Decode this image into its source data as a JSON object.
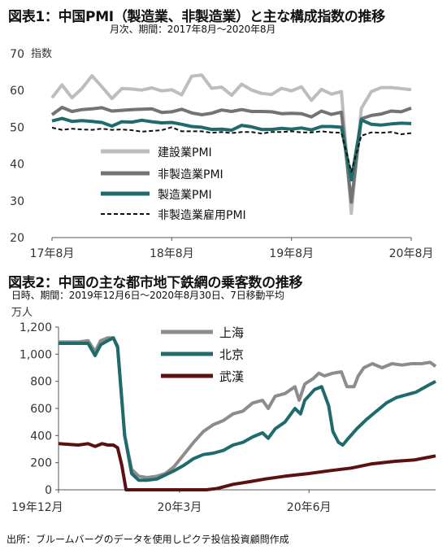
{
  "page": {
    "source": "出所：ブルームバーグのデータを使用しピクテ投信投資顧問作成"
  },
  "chart_data": [
    {
      "type": "line",
      "title": "図表1：中国PMI（製造業、非製造業）と主な構成指数の推移",
      "subtitle": "月次、期間：2017年8月～2020年8月",
      "ylabel": "指数",
      "ylim": [
        20,
        70
      ],
      "yticks": [
        20,
        30,
        40,
        50,
        60,
        70
      ],
      "xlabels": [
        "17年8月",
        "18年8月",
        "19年8月",
        "20年8月"
      ],
      "x": [
        "2017-08",
        "2017-09",
        "2017-10",
        "2017-11",
        "2017-12",
        "2018-01",
        "2018-02",
        "2018-03",
        "2018-04",
        "2018-05",
        "2018-06",
        "2018-07",
        "2018-08",
        "2018-09",
        "2018-10",
        "2018-11",
        "2018-12",
        "2019-01",
        "2019-02",
        "2019-03",
        "2019-04",
        "2019-05",
        "2019-06",
        "2019-07",
        "2019-08",
        "2019-09",
        "2019-10",
        "2019-11",
        "2019-12",
        "2020-01",
        "2020-02",
        "2020-03",
        "2020-04",
        "2020-05",
        "2020-06",
        "2020-07",
        "2020-08"
      ],
      "grid": false,
      "legend": "inside-bottom-left",
      "series": [
        {
          "name": "建設業PMI",
          "color": "#bdbdbd",
          "values": [
            58.0,
            61.5,
            58.0,
            60.5,
            64.0,
            61.0,
            57.8,
            60.5,
            60.4,
            60.1,
            60.7,
            59.9,
            60.2,
            58.8,
            63.9,
            64.2,
            60.6,
            60.9,
            58.7,
            61.7,
            60.1,
            59.2,
            58.9,
            60.6,
            59.9,
            61.0,
            57.3,
            60.3,
            59.0,
            59.7,
            26.6,
            55.1,
            59.7,
            60.8,
            60.8,
            60.5,
            60.2
          ]
        },
        {
          "name": "非製造業PMI",
          "color": "#737373",
          "values": [
            53.4,
            55.4,
            54.3,
            54.8,
            55.0,
            55.3,
            54.4,
            54.6,
            54.8,
            54.9,
            55.0,
            54.0,
            54.2,
            54.9,
            53.9,
            53.4,
            53.8,
            54.7,
            54.3,
            54.8,
            54.3,
            54.3,
            54.2,
            53.7,
            53.8,
            53.7,
            52.8,
            54.4,
            53.5,
            54.1,
            29.6,
            52.3,
            53.2,
            53.6,
            54.4,
            54.2,
            55.2
          ]
        },
        {
          "name": "製造業PMI",
          "color": "#1f6b6b",
          "values": [
            51.7,
            52.4,
            51.6,
            51.8,
            51.6,
            51.3,
            50.3,
            51.5,
            51.4,
            51.9,
            51.5,
            51.2,
            51.3,
            50.8,
            50.2,
            50.0,
            49.4,
            49.5,
            49.2,
            50.5,
            50.1,
            49.4,
            49.4,
            49.7,
            49.5,
            49.8,
            49.3,
            50.2,
            50.2,
            50.0,
            35.7,
            52.0,
            50.8,
            50.6,
            50.9,
            51.1,
            51.0
          ]
        },
        {
          "name": "非製造業雇用PMI",
          "color": "#111111",
          "dash": true,
          "values": [
            49.9,
            49.3,
            49.6,
            49.4,
            49.3,
            49.6,
            49.3,
            49.4,
            49.2,
            48.8,
            49.0,
            49.2,
            50.0,
            48.9,
            48.9,
            48.9,
            48.5,
            48.7,
            48.4,
            48.7,
            48.7,
            48.3,
            48.7,
            48.7,
            48.9,
            48.6,
            48.6,
            48.9,
            48.6,
            48.5,
            37.9,
            47.7,
            48.6,
            48.5,
            48.7,
            48.1,
            48.4
          ]
        }
      ]
    },
    {
      "type": "line",
      "title": "図表2：中国の主な都市地下鉄網の乗客数の推移",
      "subtitle": "日時、期間：2019年12月6日～2020年8月30日、7日移動平均",
      "ylabel": "万人",
      "ylim": [
        0,
        1200
      ],
      "yticks": [
        "0",
        "200",
        "400",
        "600",
        "800",
        "1,000",
        "1,200"
      ],
      "xlabels": [
        "19年12月",
        "20年3月",
        "20年6月"
      ],
      "grid": false,
      "legend": "top-center",
      "series": [
        {
          "name": "上海",
          "color": "#8c8c8c",
          "points": [
            [
              "2019-12-06",
              1090
            ],
            [
              "2019-12-20",
              1090
            ],
            [
              "2019-12-27",
              1100
            ],
            [
              "2020-01-01",
              1020
            ],
            [
              "2020-01-05",
              1100
            ],
            [
              "2020-01-10",
              1120
            ],
            [
              "2020-01-14",
              1120
            ],
            [
              "2020-01-17",
              1060
            ],
            [
              "2020-01-22",
              400
            ],
            [
              "2020-01-27",
              150
            ],
            [
              "2020-02-01",
              100
            ],
            [
              "2020-02-07",
              90
            ],
            [
              "2020-02-14",
              100
            ],
            [
              "2020-02-20",
              120
            ],
            [
              "2020-02-26",
              170
            ],
            [
              "2020-03-04",
              260
            ],
            [
              "2020-03-11",
              350
            ],
            [
              "2020-03-18",
              430
            ],
            [
              "2020-03-25",
              480
            ],
            [
              "2020-04-01",
              510
            ],
            [
              "2020-04-08",
              560
            ],
            [
              "2020-04-15",
              580
            ],
            [
              "2020-04-22",
              640
            ],
            [
              "2020-04-29",
              660
            ],
            [
              "2020-05-03",
              600
            ],
            [
              "2020-05-08",
              690
            ],
            [
              "2020-05-15",
              710
            ],
            [
              "2020-05-22",
              760
            ],
            [
              "2020-05-25",
              660
            ],
            [
              "2020-05-29",
              780
            ],
            [
              "2020-06-04",
              820
            ],
            [
              "2020-06-08",
              860
            ],
            [
              "2020-06-12",
              840
            ],
            [
              "2020-06-18",
              860
            ],
            [
              "2020-06-24",
              870
            ],
            [
              "2020-06-28",
              760
            ],
            [
              "2020-07-03",
              760
            ],
            [
              "2020-07-06",
              840
            ],
            [
              "2020-07-10",
              900
            ],
            [
              "2020-07-16",
              930
            ],
            [
              "2020-07-23",
              900
            ],
            [
              "2020-07-30",
              930
            ],
            [
              "2020-08-06",
              920
            ],
            [
              "2020-08-13",
              930
            ],
            [
              "2020-08-20",
              930
            ],
            [
              "2020-08-26",
              940
            ],
            [
              "2020-08-30",
              910
            ]
          ]
        },
        {
          "name": "北京",
          "color": "#1f6b6b",
          "points": [
            [
              "2019-12-06",
              1080
            ],
            [
              "2019-12-20",
              1080
            ],
            [
              "2019-12-27",
              1080
            ],
            [
              "2020-01-01",
              990
            ],
            [
              "2020-01-05",
              1070
            ],
            [
              "2020-01-10",
              1100
            ],
            [
              "2020-01-14",
              1120
            ],
            [
              "2020-01-17",
              1050
            ],
            [
              "2020-01-22",
              400
            ],
            [
              "2020-01-27",
              120
            ],
            [
              "2020-02-01",
              70
            ],
            [
              "2020-02-07",
              70
            ],
            [
              "2020-02-14",
              80
            ],
            [
              "2020-02-20",
              110
            ],
            [
              "2020-02-26",
              140
            ],
            [
              "2020-03-04",
              180
            ],
            [
              "2020-03-11",
              230
            ],
            [
              "2020-03-18",
              260
            ],
            [
              "2020-03-25",
              270
            ],
            [
              "2020-04-01",
              290
            ],
            [
              "2020-04-08",
              330
            ],
            [
              "2020-04-15",
              350
            ],
            [
              "2020-04-22",
              390
            ],
            [
              "2020-04-29",
              420
            ],
            [
              "2020-05-03",
              380
            ],
            [
              "2020-05-08",
              450
            ],
            [
              "2020-05-15",
              500
            ],
            [
              "2020-05-22",
              600
            ],
            [
              "2020-05-26",
              560
            ],
            [
              "2020-05-29",
              660
            ],
            [
              "2020-06-05",
              740
            ],
            [
              "2020-06-10",
              760
            ],
            [
              "2020-06-15",
              620
            ],
            [
              "2020-06-18",
              430
            ],
            [
              "2020-06-22",
              350
            ],
            [
              "2020-06-25",
              330
            ],
            [
              "2020-06-29",
              380
            ],
            [
              "2020-07-05",
              450
            ],
            [
              "2020-07-12",
              520
            ],
            [
              "2020-07-19",
              580
            ],
            [
              "2020-07-26",
              640
            ],
            [
              "2020-08-02",
              680
            ],
            [
              "2020-08-09",
              700
            ],
            [
              "2020-08-16",
              720
            ],
            [
              "2020-08-23",
              760
            ],
            [
              "2020-08-30",
              800
            ]
          ]
        },
        {
          "name": "武漢",
          "color": "#5b1111",
          "points": [
            [
              "2019-12-06",
              340
            ],
            [
              "2019-12-20",
              330
            ],
            [
              "2019-12-27",
              340
            ],
            [
              "2020-01-01",
              320
            ],
            [
              "2020-01-06",
              340
            ],
            [
              "2020-01-10",
              330
            ],
            [
              "2020-01-14",
              330
            ],
            [
              "2020-01-17",
              310
            ],
            [
              "2020-01-20",
              180
            ],
            [
              "2020-01-23",
              0
            ],
            [
              "2020-02-15",
              0
            ],
            [
              "2020-03-10",
              0
            ],
            [
              "2020-03-20",
              0
            ],
            [
              "2020-03-28",
              10
            ],
            [
              "2020-04-08",
              40
            ],
            [
              "2020-04-20",
              60
            ],
            [
              "2020-05-01",
              80
            ],
            [
              "2020-05-15",
              100
            ],
            [
              "2020-06-01",
              120
            ],
            [
              "2020-06-15",
              140
            ],
            [
              "2020-07-01",
              160
            ],
            [
              "2020-07-15",
              190
            ],
            [
              "2020-08-01",
              210
            ],
            [
              "2020-08-15",
              220
            ],
            [
              "2020-08-25",
              240
            ],
            [
              "2020-08-30",
              250
            ]
          ]
        }
      ]
    }
  ]
}
